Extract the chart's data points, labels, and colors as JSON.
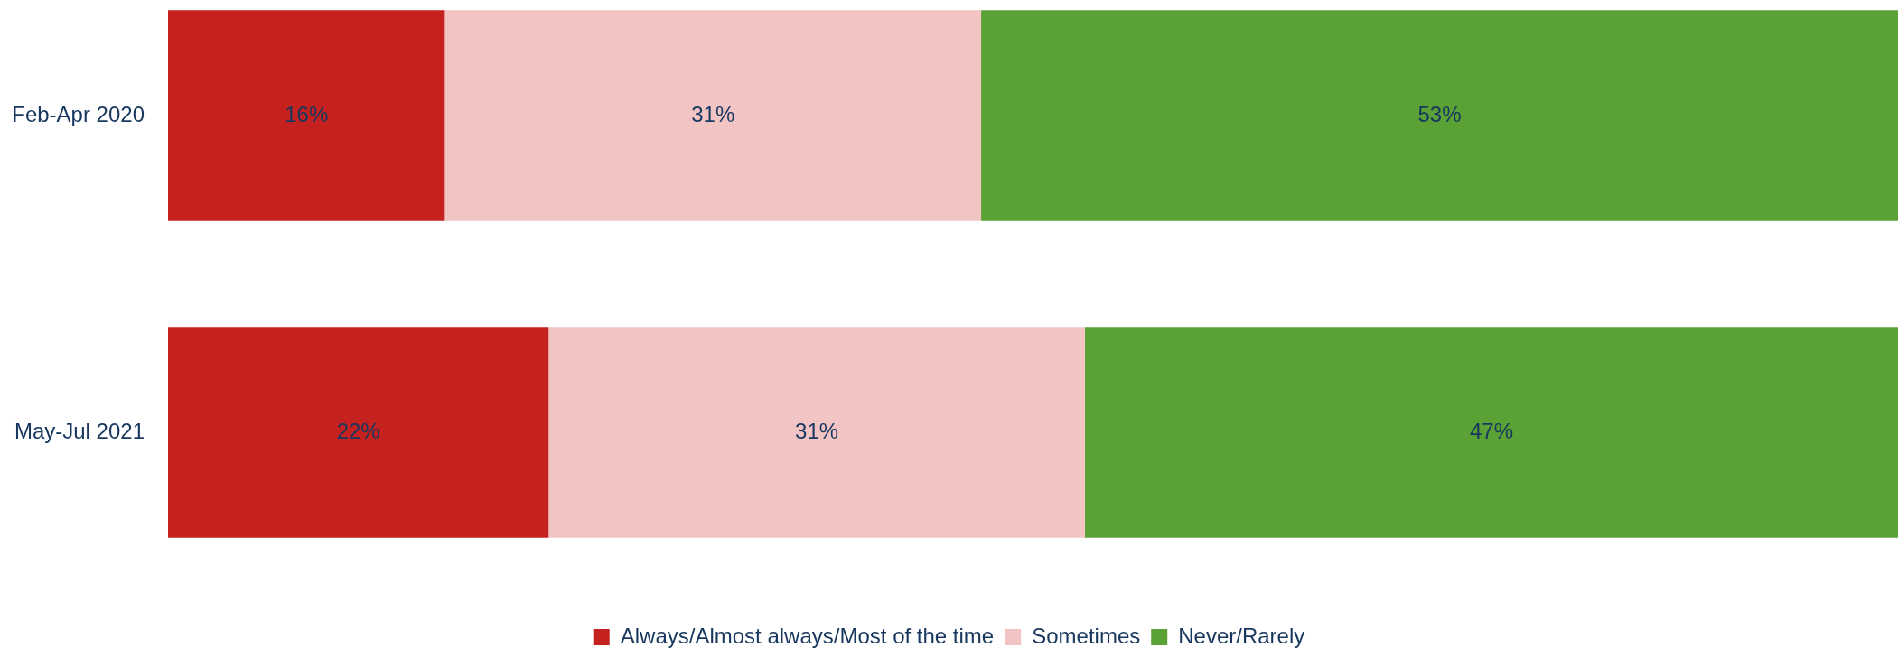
{
  "chart_data": {
    "type": "bar",
    "orientation": "horizontal",
    "stacked": true,
    "categories": [
      "Feb-Apr 2020",
      "May-Jul 2021"
    ],
    "series": [
      {
        "name": "Always/Almost always/Most of the time",
        "color": "#c5221f",
        "values": [
          16,
          22
        ],
        "value_labels": [
          "16%",
          "22%"
        ]
      },
      {
        "name": "Sometimes",
        "color": "#f2c4c4",
        "values": [
          31,
          31
        ],
        "value_labels": [
          "31%",
          "31%"
        ]
      },
      {
        "name": "Never/Rarely",
        "color": "#5aa136",
        "values": [
          53,
          47
        ],
        "value_labels": [
          "53%",
          "47%"
        ]
      }
    ],
    "xlim": [
      0,
      100
    ],
    "tick_labels": "y",
    "grid": false,
    "legend": "bottom"
  }
}
